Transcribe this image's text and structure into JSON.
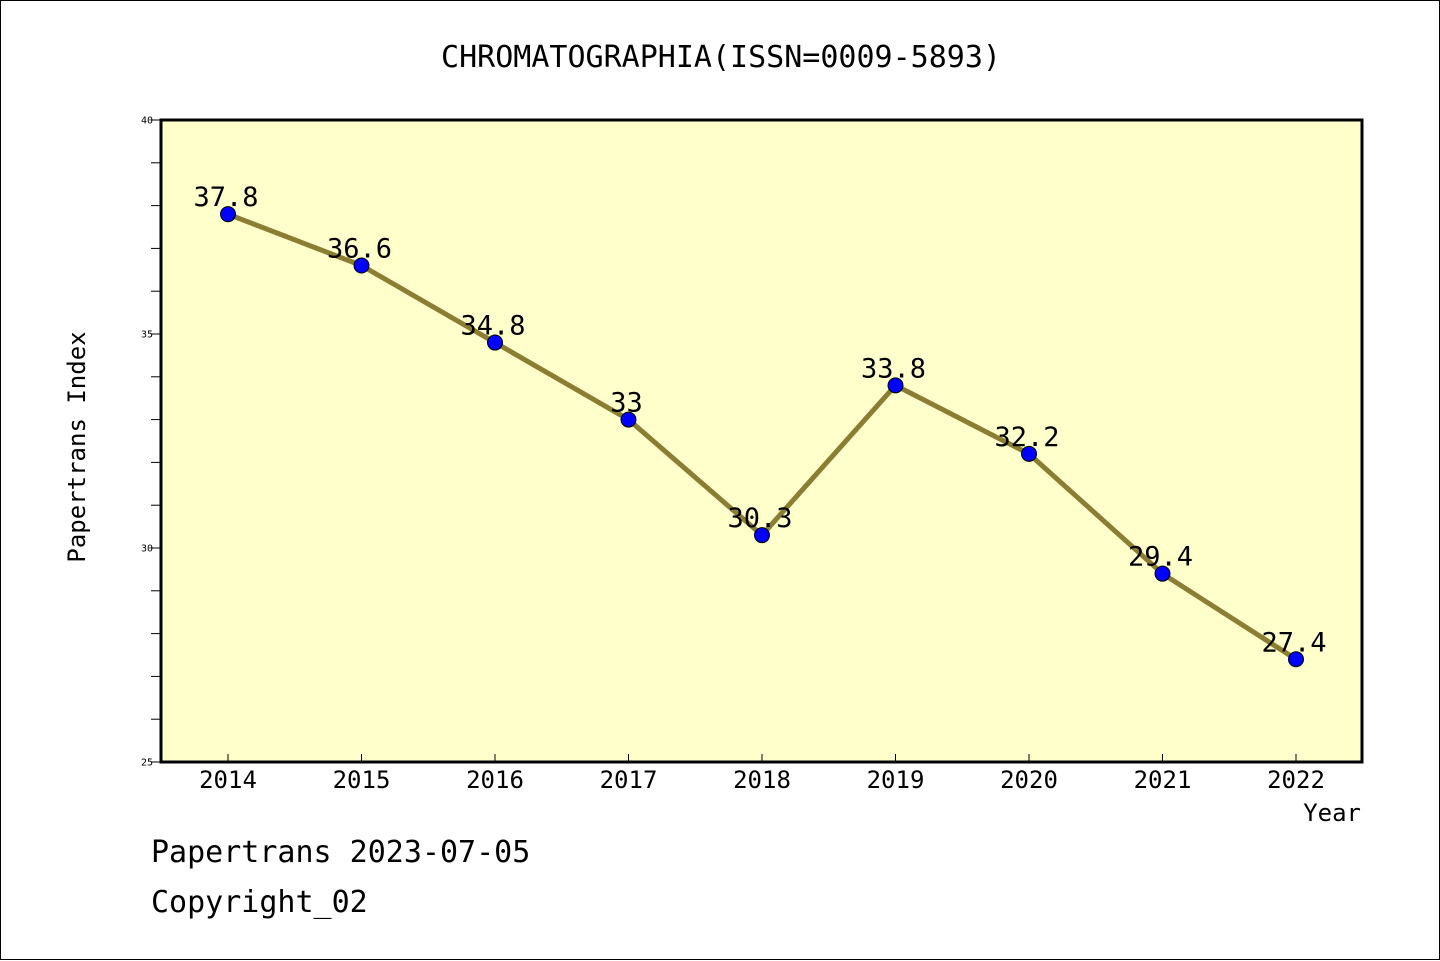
{
  "chart_data": {
    "type": "line",
    "title": "CHROMATOGRAPHIA(ISSN=0009-5893)",
    "xlabel": "Year",
    "ylabel": "Papertrans Index",
    "x": [
      "2014",
      "2015",
      "2016",
      "2017",
      "2018",
      "2019",
      "2020",
      "2021",
      "2022"
    ],
    "series": [
      {
        "values": [
          37.8,
          36.6,
          34.8,
          33,
          30.3,
          33.8,
          32.2,
          29.4,
          27.4
        ],
        "data_labels": [
          "37.8",
          "36.6",
          "34.8",
          "33",
          "30.3",
          "33.8",
          "32.2",
          "29.4",
          "27.4"
        ]
      }
    ],
    "ylim": [
      25,
      40
    ],
    "y_ticks": [
      "25",
      "30",
      "35",
      "40"
    ],
    "y_minor_step": 1,
    "grid": false,
    "colors": {
      "plot_background": "#ffffcc",
      "line": "#8b7d32",
      "marker": "#0000ff",
      "axis": "#000000"
    }
  },
  "footer": {
    "source": "Papertrans 2023-07-05",
    "copyright": "Copyright_02"
  }
}
